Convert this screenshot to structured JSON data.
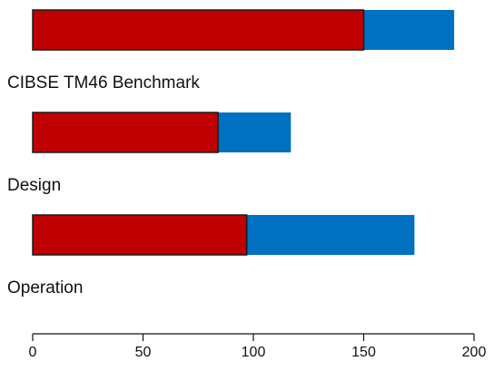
{
  "chart_data": {
    "type": "bar",
    "orientation": "horizontal",
    "stacked": true,
    "categories": [
      "CIBSE TM46 Benchmark",
      "Design",
      "Operation"
    ],
    "series": [
      {
        "color": "#c00000",
        "values": [
          150,
          84,
          97
        ]
      },
      {
        "color": "#0070c0",
        "values": [
          41,
          33,
          76
        ]
      }
    ],
    "xlim": [
      0,
      200
    ],
    "xticks": [
      "0",
      "50",
      "100",
      "150",
      "200"
    ],
    "grid": false,
    "legend": "none"
  }
}
